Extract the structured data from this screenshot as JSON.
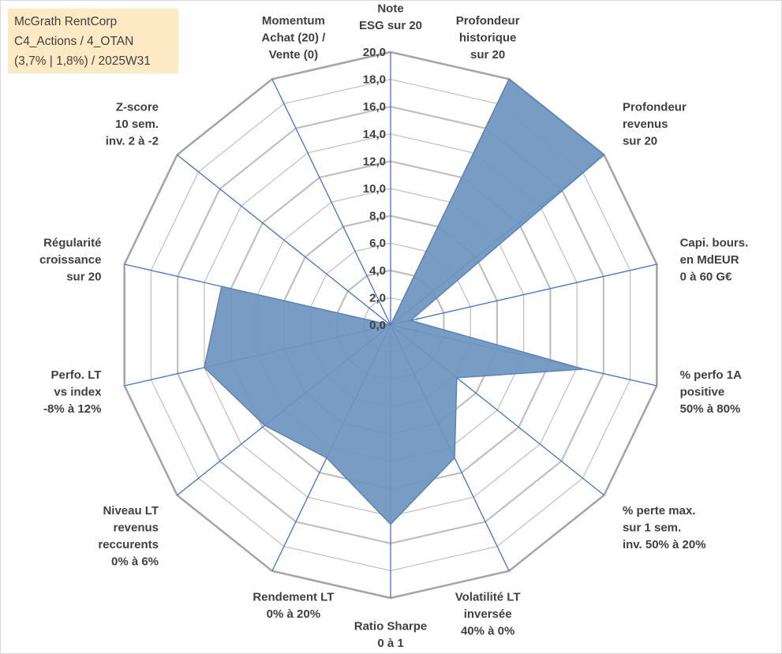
{
  "info_box": {
    "line1": "McGrath RentCorp",
    "line2": "C4_Actions / 4_OTAN",
    "line3": "(3,7% | 1,8%) / 2025W31"
  },
  "colors": {
    "area_fill": "#6f95c0",
    "area_stroke": "#5b84b6",
    "spoke": "#4472c4",
    "ring": "#bfbfbf",
    "ring_outer": "#a6a6a6",
    "text": "#404040"
  },
  "chart_data": {
    "type": "radar",
    "title": "",
    "rmax": 20,
    "ticks": [
      "0,0",
      "2,0",
      "4,0",
      "6,0",
      "8,0",
      "10,0",
      "12,0",
      "14,0",
      "16,0",
      "18,0",
      "20,0"
    ],
    "axes": [
      {
        "label": [
          "Note",
          "ESG sur 20"
        ],
        "value": 0
      },
      {
        "label": [
          "Profondeur",
          "historique",
          "sur 20"
        ],
        "value": 20
      },
      {
        "label": [
          "Profondeur",
          "revenus",
          "sur 20"
        ],
        "value": 20
      },
      {
        "label": [
          "Capi. bours.",
          "en MdEUR",
          "0 à 60 G€"
        ],
        "value": 1.5
      },
      {
        "label": [
          "% perfo 1A",
          "positive",
          "50% à 80%"
        ],
        "value": 14.5
      },
      {
        "label": [
          "% perte max.",
          "sur 1 sem.",
          "inv. 50% à 20%"
        ],
        "value": 6.2
      },
      {
        "label": [
          "Volatilité LT",
          "inversée",
          "40% à 0%"
        ],
        "value": 10.8
      },
      {
        "label": [
          "Ratio Sharpe",
          "0 à 1"
        ],
        "value": 14.6
      },
      {
        "label": [
          "Rendement LT",
          "0% à 20%"
        ],
        "value": 10.8
      },
      {
        "label": [
          "Niveau LT",
          "revenus",
          "reccurents",
          "0% à 6%"
        ],
        "value": 11.8
      },
      {
        "label": [
          "Perfo. LT",
          "vs index",
          "-8% à 12%"
        ],
        "value": 14.0
      },
      {
        "label": [
          "Régularité",
          "croissance",
          "sur 20"
        ],
        "value": 12.7
      },
      {
        "label": [
          "Z-score",
          "10 sem.",
          "inv. 2 à -2"
        ],
        "value": 0
      },
      {
        "label": [
          "Momentum",
          "Achat (20) /",
          "Vente (0)"
        ],
        "value": 0
      }
    ]
  }
}
